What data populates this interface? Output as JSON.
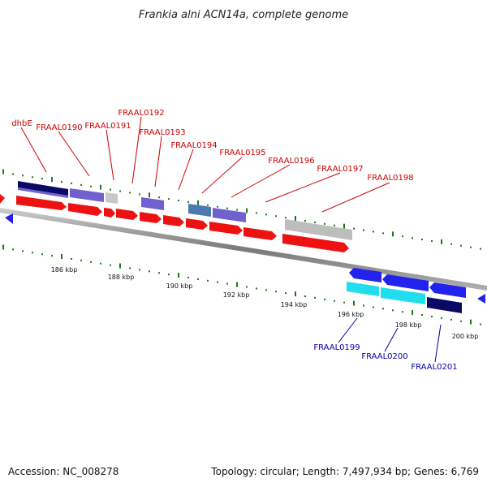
{
  "title": "Frankia alni ACN14a, complete genome",
  "footer": {
    "accession": "Accession: NC_008278",
    "topology": "Topology: circular; Length: 7,497,934 bp; Genes: 6,769"
  },
  "colors": {
    "label_top": "#cc0000",
    "label_bottom": "#0000aa",
    "backbone": "#8a8a8a",
    "tick": "#1a7a1a",
    "red": "#ee1111",
    "blue": "#2222ee",
    "purple": "#7060d0",
    "navy": "#0a0a66",
    "cyan": "#22ddee",
    "grey": "#bdbdbd",
    "steel": "#4a7ab0"
  },
  "scale_labels": [
    "186 kbp",
    "188 kbp",
    "190 kbp",
    "192 kbp",
    "194 kbp",
    "196 kbp",
    "198 kbp",
    "200 kbp"
  ],
  "top_labels": [
    "dhbE",
    "FRAAL0190",
    "FRAAL0191",
    "FRAAL0192",
    "FRAAL0193",
    "FRAAL0194",
    "FRAAL0195",
    "FRAAL0196",
    "FRAAL0197",
    "FRAAL0198"
  ],
  "bottom_labels": [
    "FRAAL0199",
    "FRAAL0200",
    "FRAAL0201"
  ]
}
